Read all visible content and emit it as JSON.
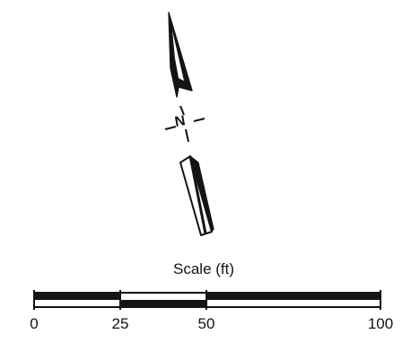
{
  "north_arrow": {
    "letter": "N"
  },
  "scale_bar": {
    "title": "Scale (ft)",
    "tick_labels": [
      "0",
      "25",
      "50",
      "100"
    ]
  },
  "colors": {
    "ink": "#141414",
    "paper": "#ffffff"
  }
}
